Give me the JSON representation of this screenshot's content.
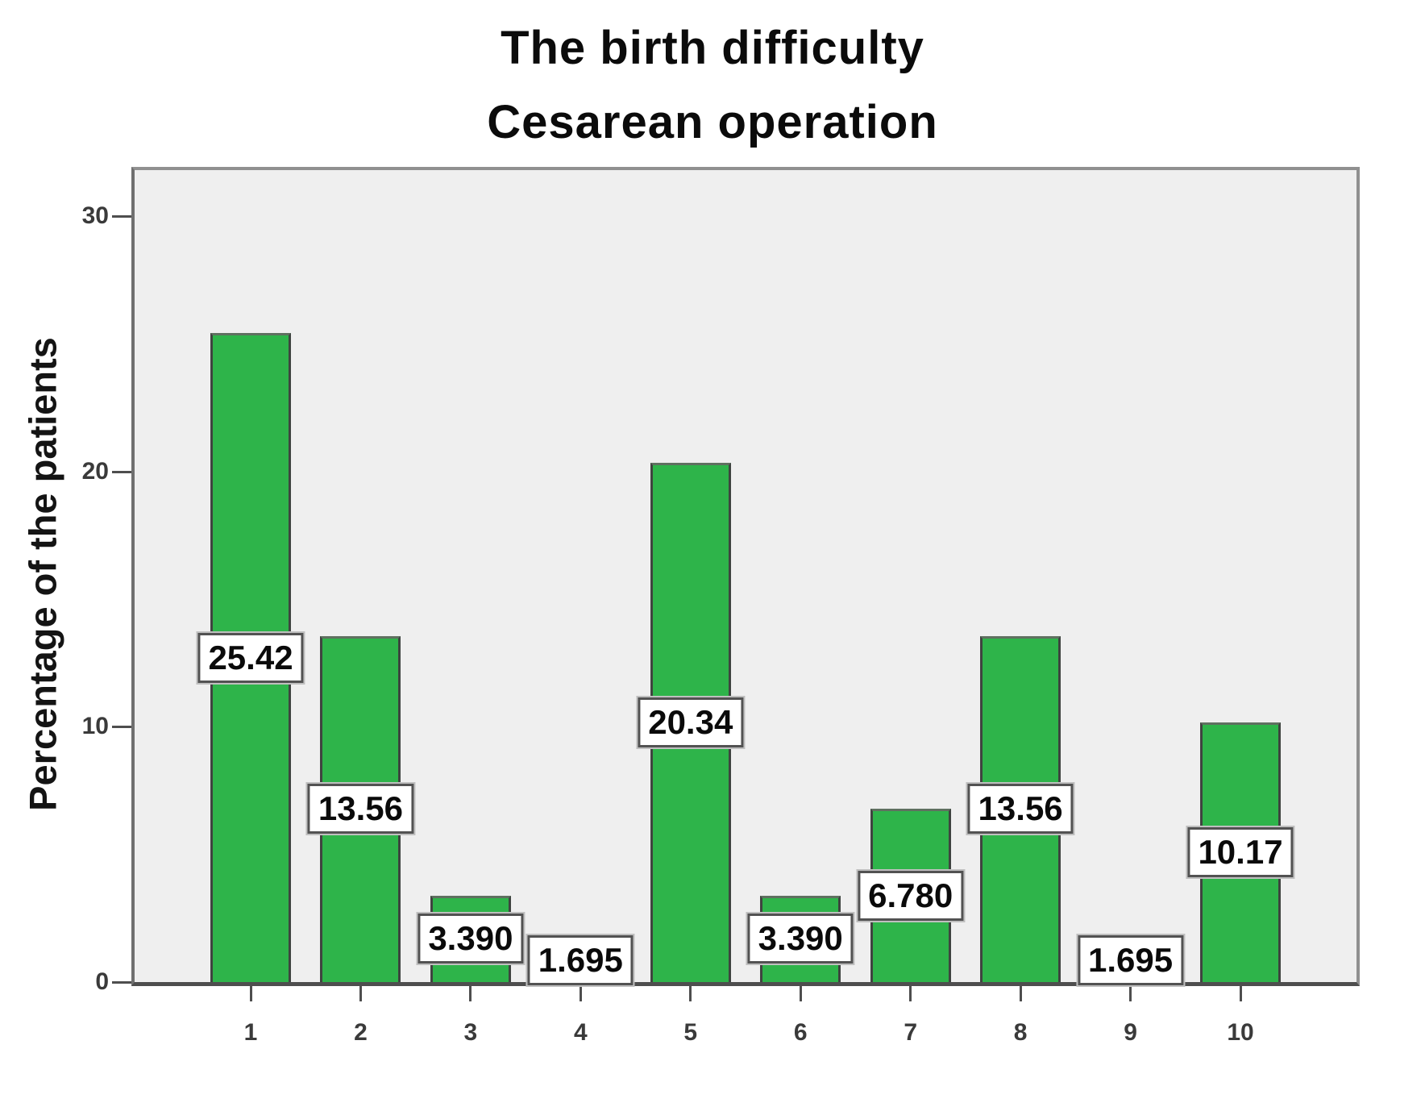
{
  "title": {
    "line1": "The birth difficulty",
    "line2": "Cesarean operation"
  },
  "chart_data": {
    "type": "bar",
    "title": "The birth difficulty",
    "subtitle": "Cesarean operation",
    "categories": [
      "1",
      "2",
      "3",
      "4",
      "5",
      "6",
      "7",
      "8",
      "9",
      "10"
    ],
    "values": [
      25.42,
      13.56,
      3.39,
      1.695,
      20.34,
      3.39,
      6.78,
      13.56,
      1.695,
      10.17
    ],
    "value_labels": [
      "25.42",
      "13.56",
      "3.390",
      "1.695",
      "20.34",
      "3.390",
      "6.780",
      "13.56",
      "1.695",
      "10.17"
    ],
    "xlabel": "",
    "ylabel": "Percentage of the patients",
    "yticks": [
      "0",
      "10",
      "20",
      "30"
    ],
    "ylim": [
      0,
      31.8
    ],
    "grid": false,
    "legend": null,
    "label_position": "bar-midpoint",
    "colors": {
      "bar_fill": "#2eb44a",
      "bar_border": "#3f4340",
      "bar_top_edge": "#5f7060",
      "plot_background": "#efefef",
      "plot_border": "#909090",
      "axis_line": "#4e4e4e",
      "label_box_background": "#ffffff",
      "label_box_border": "#525252",
      "text": "#0b0b0b"
    }
  }
}
